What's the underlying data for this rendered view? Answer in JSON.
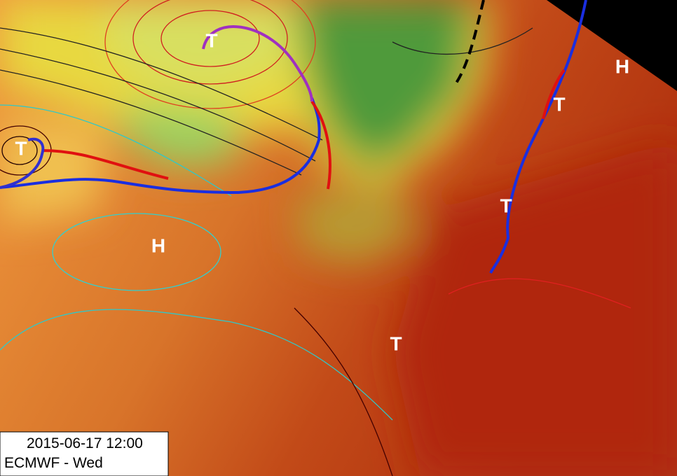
{
  "map": {
    "pressure_centers": [
      "T",
      "T",
      "H",
      "T",
      "H",
      "T",
      "T"
    ]
  },
  "info_box": {
    "datetime": "2015-06-17 12:00",
    "title": "ECMWF - Wed"
  }
}
